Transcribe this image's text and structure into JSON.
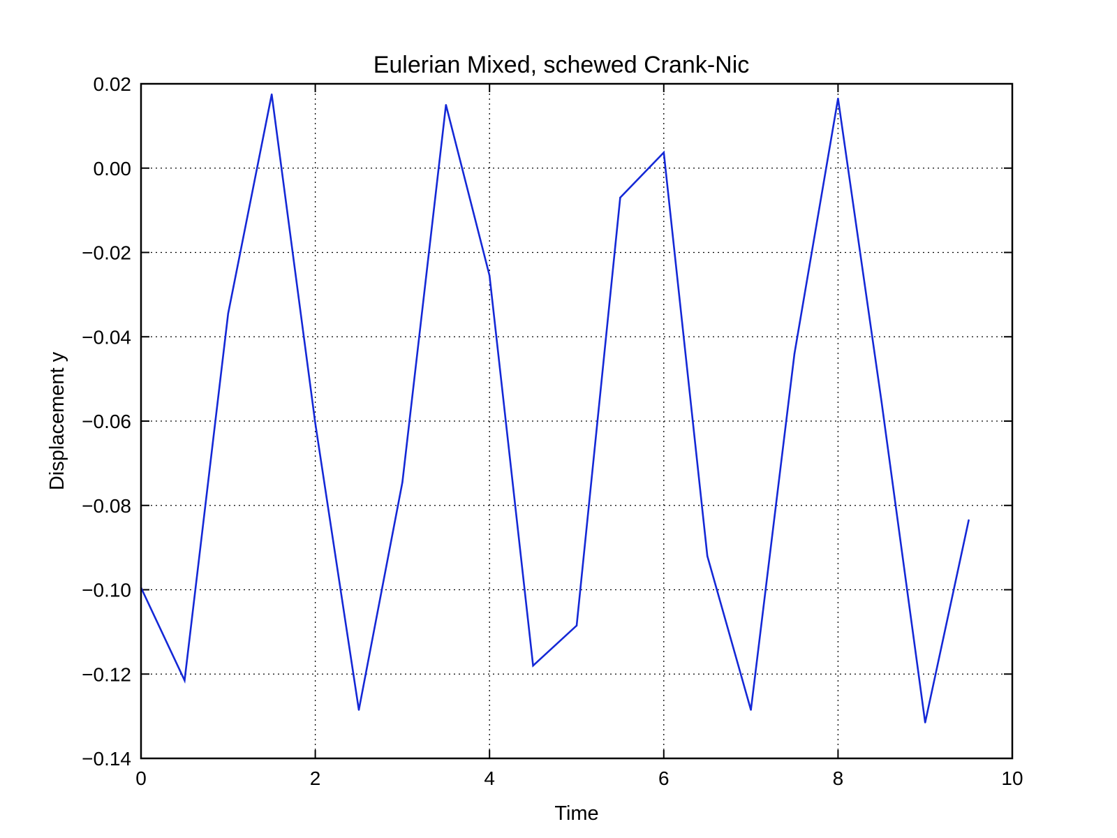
{
  "chart_data": {
    "type": "line",
    "title": "Eulerian Mixed, schewed Crank-Nic",
    "xlabel": "Time",
    "ylabel": "Displacement y",
    "xlim": [
      0,
      10
    ],
    "ylim": [
      -0.14,
      0.02
    ],
    "grid": true,
    "x_ticks": [
      0,
      2,
      4,
      6,
      8,
      10
    ],
    "x_tick_labels": [
      "0",
      "2",
      "4",
      "6",
      "8",
      "10"
    ],
    "y_ticks": [
      0.02,
      0.0,
      -0.02,
      -0.04,
      -0.06,
      -0.08,
      -0.1,
      -0.12,
      -0.14
    ],
    "y_tick_labels": [
      "0.02",
      "0.00",
      "−0.02",
      "−0.04",
      "−0.06",
      "−0.08",
      "−0.10",
      "−0.12",
      "−0.14"
    ],
    "series": [
      {
        "color": "#1428d6",
        "x": [
          0,
          0.5,
          1.0,
          1.5,
          2.0,
          2.5,
          3.0,
          3.5,
          4.0,
          4.5,
          5.0,
          5.5,
          6.0,
          6.5,
          7.0,
          7.5,
          8.0,
          8.5,
          9.0,
          9.5
        ],
        "y": [
          -0.0995,
          -0.1215,
          -0.0345,
          0.0175,
          -0.0605,
          -0.1285,
          -0.0745,
          0.015,
          -0.0255,
          -0.118,
          -0.1085,
          -0.007,
          0.0037,
          -0.092,
          -0.1285,
          -0.044,
          0.0165,
          -0.0555,
          -0.1315,
          -0.0835
        ]
      }
    ]
  }
}
